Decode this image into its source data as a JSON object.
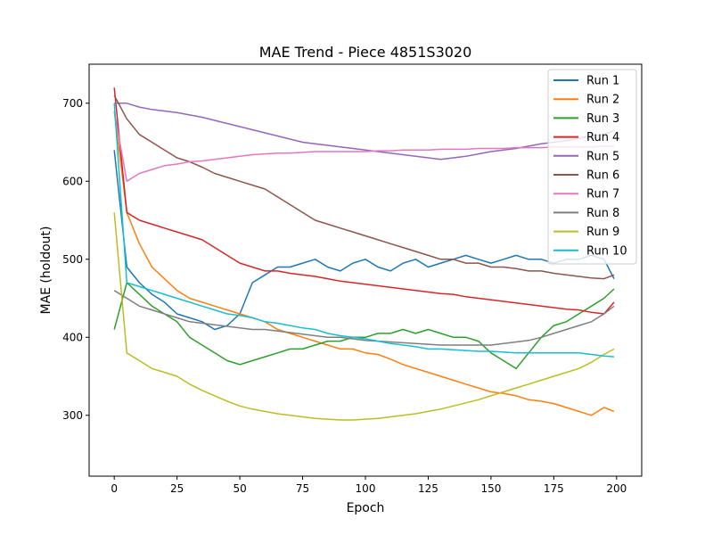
{
  "chart_data": {
    "type": "line",
    "title": "MAE Trend - Piece 4851S3020",
    "xlabel": "Epoch",
    "ylabel": "MAE (holdout)",
    "xlim": [
      -10,
      210
    ],
    "ylim": [
      222,
      750
    ],
    "x_ticks": [
      0,
      25,
      50,
      75,
      100,
      125,
      150,
      175,
      200
    ],
    "y_ticks": [
      300,
      400,
      500,
      600,
      700
    ],
    "grid": false,
    "legend_position": "top-right",
    "x": [
      0,
      5,
      10,
      15,
      20,
      25,
      30,
      35,
      40,
      45,
      50,
      55,
      60,
      65,
      70,
      75,
      80,
      85,
      90,
      95,
      100,
      105,
      110,
      115,
      120,
      125,
      130,
      135,
      140,
      145,
      150,
      155,
      160,
      165,
      170,
      175,
      180,
      185,
      190,
      195,
      199
    ],
    "series": [
      {
        "name": "Run 1",
        "color": "#1f77b4",
        "values": [
          640,
          490,
          470,
          455,
          445,
          430,
          425,
          420,
          410,
          415,
          430,
          470,
          480,
          490,
          490,
          495,
          500,
          490,
          485,
          495,
          500,
          490,
          485,
          495,
          500,
          490,
          495,
          500,
          505,
          500,
          495,
          500,
          505,
          500,
          500,
          495,
          500,
          500,
          505,
          500,
          475
        ]
      },
      {
        "name": "Run 2",
        "color": "#ff7f0e",
        "values": [
          690,
          560,
          520,
          490,
          475,
          460,
          450,
          445,
          440,
          435,
          430,
          425,
          420,
          410,
          405,
          400,
          395,
          390,
          385,
          385,
          380,
          378,
          372,
          365,
          360,
          355,
          350,
          345,
          340,
          335,
          330,
          328,
          325,
          320,
          318,
          315,
          310,
          305,
          300,
          310,
          305
        ]
      },
      {
        "name": "Run 3",
        "color": "#2ca02c",
        "values": [
          410,
          470,
          455,
          440,
          430,
          420,
          400,
          390,
          380,
          370,
          365,
          370,
          375,
          380,
          385,
          385,
          390,
          395,
          395,
          400,
          400,
          405,
          405,
          410,
          405,
          410,
          405,
          400,
          400,
          395,
          380,
          370,
          360,
          380,
          400,
          415,
          420,
          430,
          440,
          450,
          462
        ]
      },
      {
        "name": "Run 4",
        "color": "#d62728",
        "values": [
          720,
          560,
          550,
          545,
          540,
          535,
          530,
          525,
          515,
          505,
          495,
          490,
          485,
          485,
          482,
          480,
          478,
          475,
          472,
          470,
          468,
          466,
          464,
          462,
          460,
          458,
          456,
          455,
          452,
          450,
          448,
          446,
          444,
          442,
          440,
          438,
          436,
          435,
          432,
          430,
          445
        ]
      },
      {
        "name": "Run 5",
        "color": "#9467bd",
        "values": [
          700,
          700,
          695,
          692,
          690,
          688,
          685,
          682,
          678,
          674,
          670,
          666,
          662,
          658,
          654,
          650,
          648,
          646,
          644,
          642,
          640,
          638,
          636,
          634,
          632,
          630,
          628,
          630,
          632,
          635,
          638,
          640,
          642,
          645,
          648,
          650,
          652,
          655,
          658,
          660,
          665
        ]
      },
      {
        "name": "Run 6",
        "color": "#8c564b",
        "values": [
          710,
          680,
          660,
          650,
          640,
          630,
          625,
          618,
          610,
          605,
          600,
          595,
          590,
          580,
          570,
          560,
          550,
          545,
          540,
          535,
          530,
          525,
          520,
          515,
          510,
          505,
          500,
          500,
          495,
          495,
          490,
          490,
          488,
          485,
          485,
          482,
          480,
          478,
          476,
          475,
          480
        ]
      },
      {
        "name": "Run 7",
        "color": "#e377c2",
        "values": [
          690,
          600,
          610,
          615,
          620,
          622,
          625,
          626,
          628,
          630,
          632,
          634,
          635,
          636,
          636,
          637,
          638,
          638,
          638,
          638,
          638,
          639,
          639,
          640,
          640,
          640,
          641,
          641,
          641,
          642,
          642,
          642,
          643,
          643,
          643,
          644,
          644,
          644,
          644,
          645,
          645
        ]
      },
      {
        "name": "Run 8",
        "color": "#7f7f7f",
        "values": [
          460,
          450,
          440,
          435,
          430,
          425,
          420,
          418,
          416,
          414,
          412,
          410,
          410,
          408,
          406,
          404,
          402,
          400,
          400,
          398,
          396,
          395,
          394,
          393,
          392,
          391,
          390,
          390,
          390,
          390,
          390,
          392,
          394,
          396,
          400,
          405,
          410,
          415,
          420,
          430,
          440
        ]
      },
      {
        "name": "Run 9",
        "color": "#bcbd22",
        "values": [
          560,
          380,
          370,
          360,
          355,
          350,
          340,
          332,
          325,
          318,
          312,
          308,
          305,
          302,
          300,
          298,
          296,
          295,
          294,
          294,
          295,
          296,
          298,
          300,
          302,
          305,
          308,
          312,
          316,
          320,
          325,
          330,
          335,
          340,
          345,
          350,
          355,
          360,
          368,
          378,
          385
        ]
      },
      {
        "name": "Run 10",
        "color": "#17becf",
        "values": [
          700,
          470,
          465,
          460,
          455,
          450,
          445,
          440,
          435,
          430,
          428,
          425,
          420,
          418,
          415,
          412,
          410,
          405,
          402,
          400,
          398,
          395,
          392,
          390,
          388,
          385,
          385,
          384,
          383,
          382,
          382,
          381,
          380,
          380,
          380,
          380,
          380,
          380,
          378,
          376,
          375
        ]
      }
    ]
  }
}
